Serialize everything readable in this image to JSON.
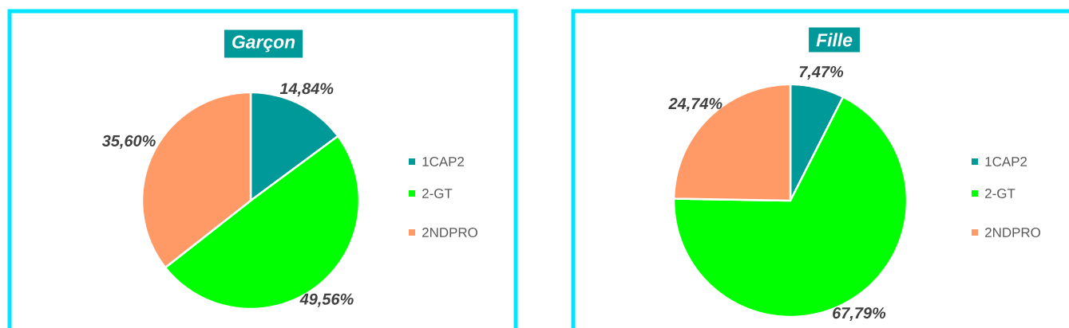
{
  "chart_data": [
    {
      "type": "pie",
      "title": "Garçon",
      "categories": [
        "1CAP2",
        "2-GT",
        "2NDPRO"
      ],
      "values": [
        14.84,
        49.56,
        35.6
      ],
      "colors": [
        "#009999",
        "#00ff00",
        "#ff9966"
      ],
      "value_labels": [
        "14,84%",
        "49,56%",
        "35,60%"
      ],
      "legend": "right"
    },
    {
      "type": "pie",
      "title": "Fille",
      "categories": [
        "1CAP2",
        "2-GT",
        "2NDPRO"
      ],
      "values": [
        7.47,
        67.79,
        24.74
      ],
      "colors": [
        "#009999",
        "#00ff00",
        "#ff9966"
      ],
      "value_labels": [
        "7,47%",
        "67,79%",
        "24,74%"
      ],
      "legend": "right"
    }
  ]
}
